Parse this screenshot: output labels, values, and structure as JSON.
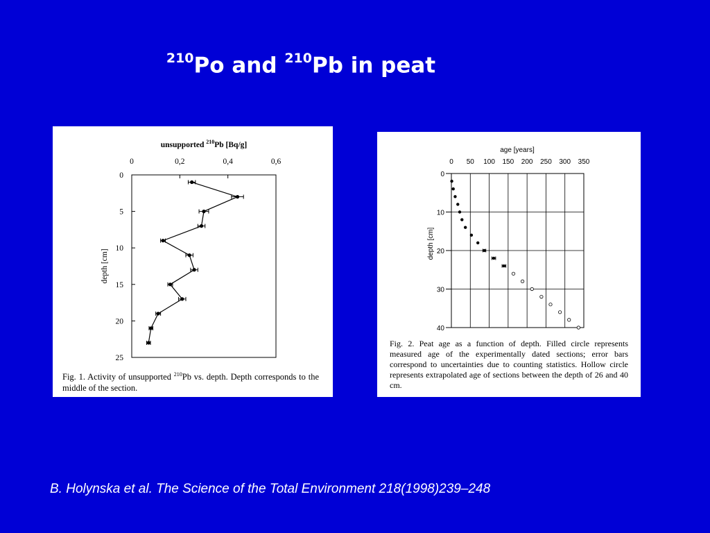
{
  "slide": {
    "title_sup1": "210",
    "title_part1": "Po and",
    "title_sup2": "210",
    "title_part2": "Pb  in peat",
    "citation": "B. Holynska et al.  The Science of the Total Environment 218(1998)239–248"
  },
  "colors": {
    "background": "#0000d6",
    "title": "#ffffff",
    "panel": "#ffffff"
  },
  "chart_data": [
    {
      "type": "line",
      "title_pre": "unsupported ",
      "title_sup": "210",
      "title_post": "Pb [Bq/g]",
      "xlabel": "unsupported 210Pb [Bq/g]",
      "ylabel": "depth [cm]",
      "xlim": [
        0,
        0.6
      ],
      "ylim": [
        0,
        25
      ],
      "y_inverted": true,
      "x_axis_position": "top",
      "x_ticks": [
        0,
        0.2,
        0.4,
        0.6
      ],
      "x_tick_labels": [
        "0",
        "0,2",
        "0,4",
        "0,6"
      ],
      "y_ticks": [
        0,
        5,
        10,
        15,
        20,
        25
      ],
      "y_tick_labels": [
        "0",
        "5",
        "10",
        "15",
        "20",
        "25"
      ],
      "grid": false,
      "series": [
        {
          "points": [
            {
              "x": 0.25,
              "y": 1,
              "err": 0.015
            },
            {
              "x": 0.44,
              "y": 3,
              "err": 0.025
            },
            {
              "x": 0.3,
              "y": 5,
              "err": 0.02
            },
            {
              "x": 0.29,
              "y": 7,
              "err": 0.015
            },
            {
              "x": 0.13,
              "y": 9,
              "err": 0.01
            },
            {
              "x": 0.24,
              "y": 11,
              "err": 0.015
            },
            {
              "x": 0.26,
              "y": 13,
              "err": 0.015
            },
            {
              "x": 0.16,
              "y": 15,
              "err": 0.01
            },
            {
              "x": 0.21,
              "y": 17,
              "err": 0.015
            },
            {
              "x": 0.11,
              "y": 19,
              "err": 0.01
            },
            {
              "x": 0.08,
              "y": 21,
              "err": 0.008
            },
            {
              "x": 0.07,
              "y": 23,
              "err": 0.008
            }
          ]
        }
      ],
      "caption_pre": "Fig. 1.  Activity of unsupported ",
      "caption_sup": "210",
      "caption_post": "Pb vs. depth. Depth corresponds to the middle of the section."
    },
    {
      "type": "scatter",
      "xlabel": "age  [years]",
      "ylabel": "depth [cm]",
      "xlim": [
        0,
        350
      ],
      "ylim": [
        0,
        40
      ],
      "y_inverted": true,
      "x_axis_position": "top",
      "x_ticks": [
        0,
        50,
        100,
        150,
        200,
        250,
        300,
        350
      ],
      "x_tick_labels": [
        "0",
        "50",
        "100",
        "150",
        "200",
        "250",
        "300",
        "350"
      ],
      "y_ticks": [
        0,
        10,
        20,
        30,
        40
      ],
      "y_tick_labels": [
        "0",
        "10",
        "20",
        "30",
        "40"
      ],
      "grid": true,
      "series": [
        {
          "marker": "filled",
          "points": [
            {
              "x": 1,
              "y": 2
            },
            {
              "x": 5,
              "y": 4
            },
            {
              "x": 10,
              "y": 6
            },
            {
              "x": 17,
              "y": 8
            },
            {
              "x": 22,
              "y": 10
            },
            {
              "x": 28,
              "y": 12
            },
            {
              "x": 37,
              "y": 14
            },
            {
              "x": 53,
              "y": 16
            },
            {
              "x": 70,
              "y": 18
            },
            {
              "x": 87,
              "y": 20,
              "err": 4
            },
            {
              "x": 112,
              "y": 22,
              "err": 5
            },
            {
              "x": 139,
              "y": 24,
              "err": 5
            }
          ]
        },
        {
          "marker": "hollow",
          "points": [
            {
              "x": 164,
              "y": 26
            },
            {
              "x": 188,
              "y": 28
            },
            {
              "x": 213,
              "y": 30
            },
            {
              "x": 238,
              "y": 32
            },
            {
              "x": 262,
              "y": 34
            },
            {
              "x": 287,
              "y": 36
            },
            {
              "x": 311,
              "y": 38
            },
            {
              "x": 336,
              "y": 40
            }
          ]
        }
      ],
      "caption": "Fig. 2.  Peat age as a function of depth. Filled circle represents measured age of the experimentally dated sections; error bars correspond to uncertainties due to counting statistics. Hollow circle represents extrapolated age of sections between the depth of 26 and 40 cm."
    }
  ]
}
